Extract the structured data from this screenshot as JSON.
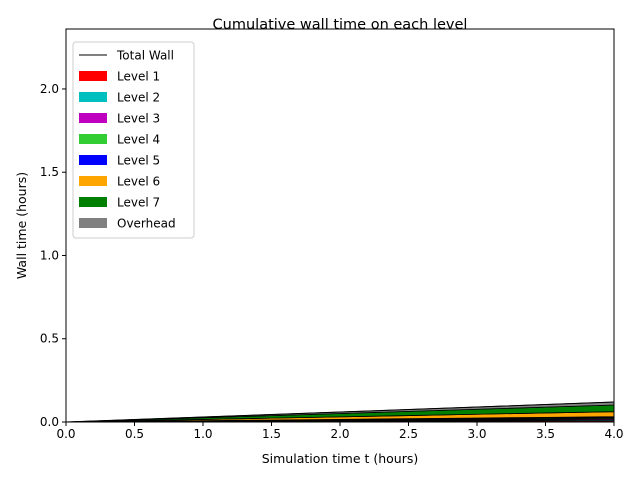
{
  "chart_data": {
    "type": "area",
    "title": "Cumulative wall time on each level",
    "xlabel": "Simulation time t (hours)",
    "ylabel": "Wall time (hours)",
    "xlim": [
      0,
      4
    ],
    "ylim": [
      0,
      2.36
    ],
    "xticks": [
      0,
      0.5,
      1,
      1.5,
      2,
      2.5,
      3,
      3.5,
      4
    ],
    "xtick_labels": [
      "0.0",
      "0.5",
      "1.0",
      "1.5",
      "2.0",
      "2.5",
      "3.0",
      "3.5",
      "4.0"
    ],
    "yticks": [
      0,
      0.5,
      1,
      1.5,
      2
    ],
    "ytick_labels": [
      "0.0",
      "0.5",
      "1.0",
      "1.5",
      "2.0"
    ],
    "grid": false,
    "legend_position": "top-left",
    "x": [
      0,
      0.5,
      1,
      1.5,
      2,
      2.5,
      3,
      3.5,
      4
    ],
    "series": [
      {
        "name": "Level 1",
        "color": "#ff0000",
        "values": [
          0,
          0.001,
          0.002,
          0.003,
          0.004,
          0.005,
          0.006,
          0.007,
          0.008
        ]
      },
      {
        "name": "Level 2",
        "color": "#00bfbf",
        "values": [
          0,
          0.0008,
          0.0016,
          0.0024,
          0.0032,
          0.004,
          0.0048,
          0.0056,
          0.0064
        ]
      },
      {
        "name": "Level 3",
        "color": "#bf00bf",
        "values": [
          0,
          0.0008,
          0.0016,
          0.0024,
          0.0032,
          0.004,
          0.0048,
          0.0056,
          0.0064
        ]
      },
      {
        "name": "Level 4",
        "color": "#32cd32",
        "values": [
          0,
          0.0007,
          0.0014,
          0.0021,
          0.0028,
          0.0035,
          0.0042,
          0.0049,
          0.0056
        ]
      },
      {
        "name": "Level 5",
        "color": "#0000ff",
        "values": [
          0,
          0.0007,
          0.0014,
          0.0021,
          0.0028,
          0.0035,
          0.0042,
          0.0049,
          0.0056
        ]
      },
      {
        "name": "Level 6",
        "color": "#ffa500",
        "values": [
          0,
          0.0038,
          0.0075,
          0.0113,
          0.015,
          0.0188,
          0.0225,
          0.0263,
          0.03
        ]
      },
      {
        "name": "Level 7",
        "color": "#008000",
        "values": [
          0,
          0.005,
          0.01,
          0.015,
          0.02,
          0.025,
          0.03,
          0.035,
          0.04
        ]
      },
      {
        "name": "Overhead",
        "color": "#808080",
        "values": [
          0,
          0.0022,
          0.0045,
          0.0068,
          0.009,
          0.0113,
          0.0135,
          0.0158,
          0.018
        ]
      }
    ],
    "total_line": {
      "name": "Total Wall",
      "color": "#000000",
      "values": [
        0,
        0.015,
        0.03,
        0.045,
        0.06,
        0.0751,
        0.0901,
        0.1051,
        0.12
      ]
    }
  }
}
